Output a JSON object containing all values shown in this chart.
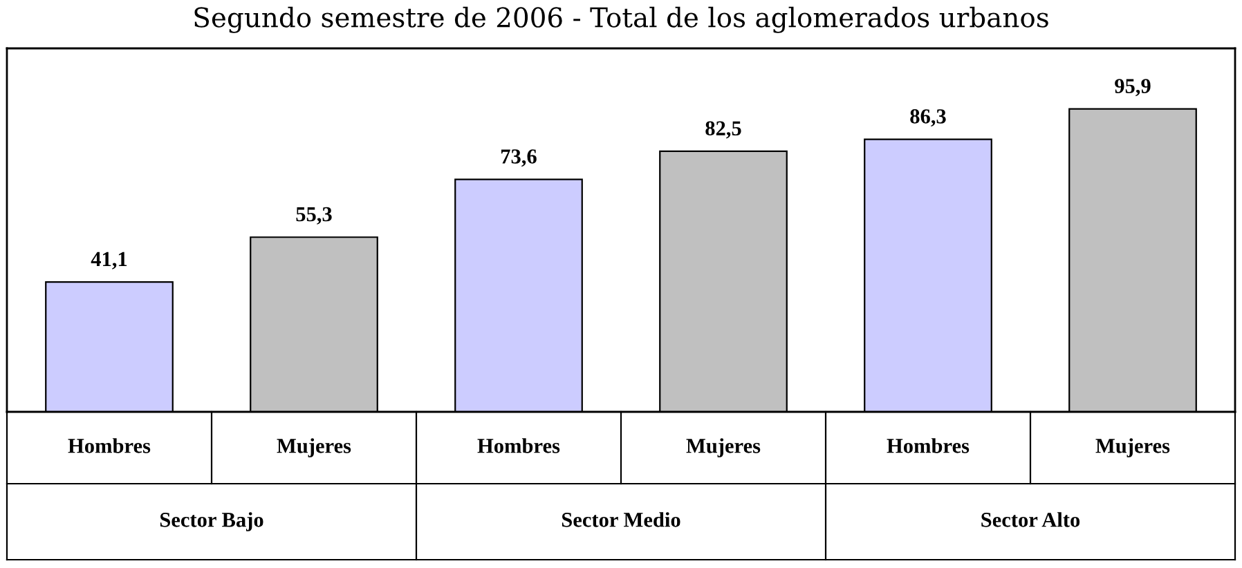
{
  "chart_data": {
    "type": "bar",
    "title": "Segundo semestre de 2006 - Total de los aglomerados urbanos",
    "categories": [
      "Hombres",
      "Mujeres",
      "Hombres",
      "Mujeres",
      "Hombres",
      "Mujeres"
    ],
    "values": [
      41.1,
      55.3,
      73.6,
      82.5,
      86.3,
      95.9
    ],
    "colors": [
      "#ccccff",
      "#c0c0c0",
      "#ccccff",
      "#c0c0c0",
      "#ccccff",
      "#c0c0c0"
    ],
    "value_labels": [
      "41,1",
      "55,3",
      "73,6",
      "82,5",
      "86,3",
      "95,9"
    ],
    "annotations": [
      "Sector Bajo",
      "Sector Medio",
      "Sector Alto"
    ]
  }
}
